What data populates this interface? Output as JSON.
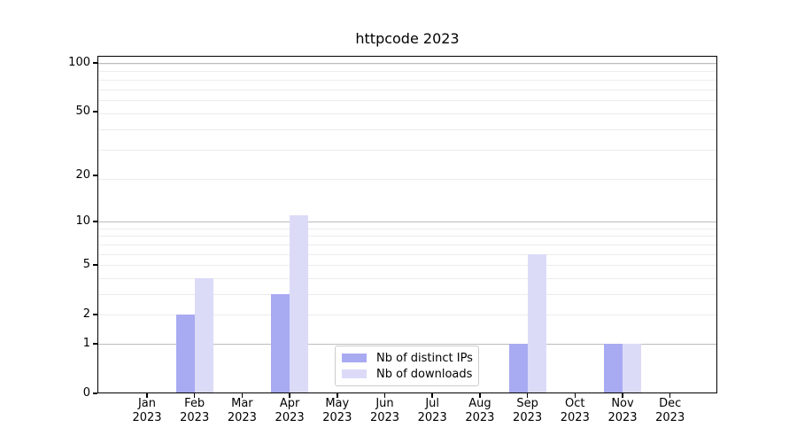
{
  "chart_data": {
    "type": "bar",
    "title": "httpcode 2023",
    "categories": [
      {
        "month": "Jan",
        "year": "2023"
      },
      {
        "month": "Feb",
        "year": "2023"
      },
      {
        "month": "Mar",
        "year": "2023"
      },
      {
        "month": "Apr",
        "year": "2023"
      },
      {
        "month": "May",
        "year": "2023"
      },
      {
        "month": "Jun",
        "year": "2023"
      },
      {
        "month": "Jul",
        "year": "2023"
      },
      {
        "month": "Aug",
        "year": "2023"
      },
      {
        "month": "Sep",
        "year": "2023"
      },
      {
        "month": "Oct",
        "year": "2023"
      },
      {
        "month": "Nov",
        "year": "2023"
      },
      {
        "month": "Dec",
        "year": "2023"
      }
    ],
    "series": [
      {
        "name": "Nb of distinct IPs",
        "color": "#a8aaf2",
        "values": [
          0,
          2,
          0,
          3,
          0,
          0,
          0,
          0,
          1,
          0,
          1,
          0
        ]
      },
      {
        "name": "Nb of downloads",
        "color": "#dbdbf8",
        "values": [
          0,
          4,
          0,
          11,
          0,
          0,
          0,
          0,
          6,
          0,
          1,
          0
        ]
      }
    ],
    "xlabel": "",
    "ylabel": "",
    "y_axis": {
      "ticks": [
        0,
        1,
        2,
        5,
        10,
        20,
        50,
        100
      ],
      "scale": "log10(1+value)",
      "range_top": 112
    },
    "grid": {
      "enabled": true,
      "major_tick_values": [
        1,
        10,
        100
      ],
      "major_color": "#bcbcbc",
      "minor_color": "#ececec"
    },
    "legend": {
      "position": "bottom-center",
      "entries": [
        "Nb of distinct IPs",
        "Nb of downloads"
      ]
    }
  }
}
